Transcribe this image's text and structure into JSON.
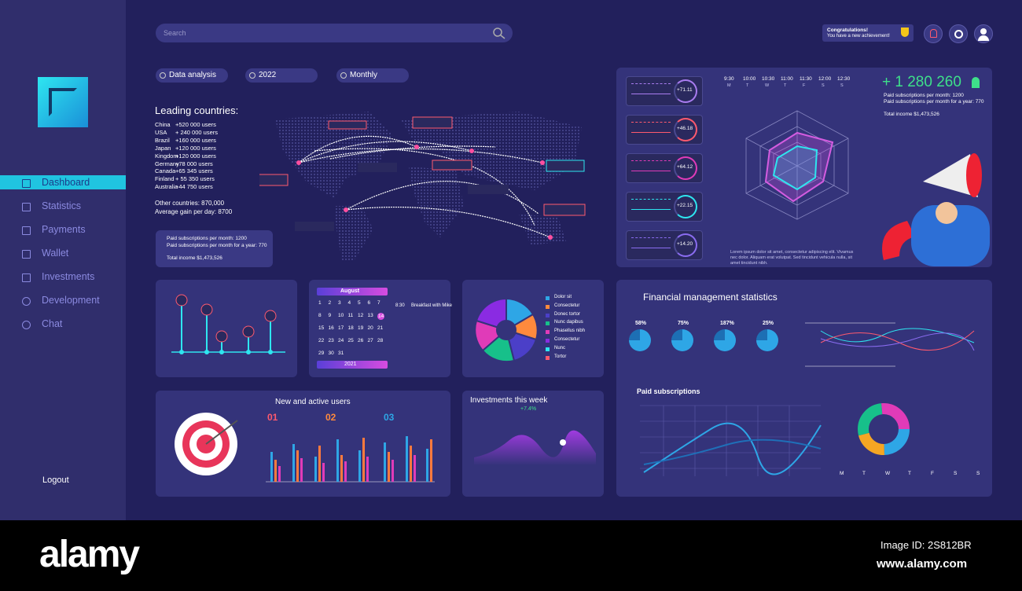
{
  "sidebar": {
    "nav": [
      "Dashboard",
      "Statistics",
      "Payments",
      "Wallet",
      "Investments",
      "Development",
      "Chat"
    ],
    "logout": "Logout"
  },
  "header": {
    "search": "Search",
    "notification_title": "Congratulations!",
    "notification_text": "You have a new achievement!"
  },
  "filters": [
    "Data analysis",
    "2022",
    "Monthly"
  ],
  "leading_countries": {
    "title": "Leading countries:",
    "rows": [
      [
        "China",
        "+520 000 users"
      ],
      [
        "USA",
        "+ 240 000 users"
      ],
      [
        "Brazil",
        "+160 000 users"
      ],
      [
        "Japan",
        "+120 000 users"
      ],
      [
        "Kingdom",
        "+120 000 users"
      ],
      [
        "Germany",
        "+78 000 users"
      ],
      [
        "Canada",
        "+65 345 users"
      ],
      [
        "Finland",
        "+ 55 350 users"
      ],
      [
        "Australia",
        "+44 750 users"
      ]
    ],
    "other": "Other countries: 870,000",
    "average": "Average gain per day: 8700"
  },
  "paid_box": {
    "line1": "Paid subscriptions per month: 1200",
    "line2": "Paid subscriptions per month for a year: 770",
    "line3": "Total income $1,473,526"
  },
  "overview": {
    "times": [
      "9:30",
      "10:00",
      "10:30",
      "11:00",
      "11:30",
      "12:00",
      "12:30"
    ],
    "days": [
      "M",
      "T",
      "W",
      "T",
      "F",
      "S",
      "S"
    ],
    "total": "+ 1 280 260",
    "line1": "Paid subscriptions per month: 1200",
    "line2": "Paid subscriptions per month for a year: 770",
    "line3": "Total income $1,473,526",
    "cards": [
      "+71.11",
      "+46.18",
      "+64.12",
      "+22.15",
      "+14.20"
    ],
    "caption": "Lorem ipsum dolor sit amet, consectetur adipiscing elit. Vivamus nec dolor. Aliquam erat volutpat. Sed tincidunt vehicula nulla, sit amet tincidunt nibh."
  },
  "calendar": {
    "month": "August",
    "year": "2021",
    "dates": [
      1,
      2,
      3,
      4,
      5,
      6,
      7,
      8,
      9,
      10,
      11,
      12,
      13,
      14,
      15,
      16,
      17,
      18,
      19,
      20,
      21,
      22,
      23,
      24,
      25,
      26,
      27,
      28,
      29,
      30,
      31
    ],
    "event_time": "8:30",
    "event": "Breakfast with Mike"
  },
  "pie_legend": [
    "Dolor sit",
    "Consectetur",
    "Donec tortor",
    "Nunc dapibus",
    "Phasellus nibh",
    "Consectetur",
    "Nunc",
    "Tortor"
  ],
  "finance": {
    "title": "Financial management statistics",
    "percents": [
      "58%",
      "75%",
      "187%",
      "25%"
    ],
    "subtitle": "Paid subscriptions",
    "days": [
      "M",
      "T",
      "W",
      "T",
      "F",
      "S",
      "S"
    ]
  },
  "users": {
    "title": "New and active users",
    "steps": [
      "01",
      "02",
      "03"
    ]
  },
  "investments": {
    "title": "Investments this week",
    "change": "+7.4%"
  },
  "watermark": {
    "brand": "alamy",
    "image_id": "Image ID: 2S812BR",
    "url": "www.alamy.com"
  }
}
